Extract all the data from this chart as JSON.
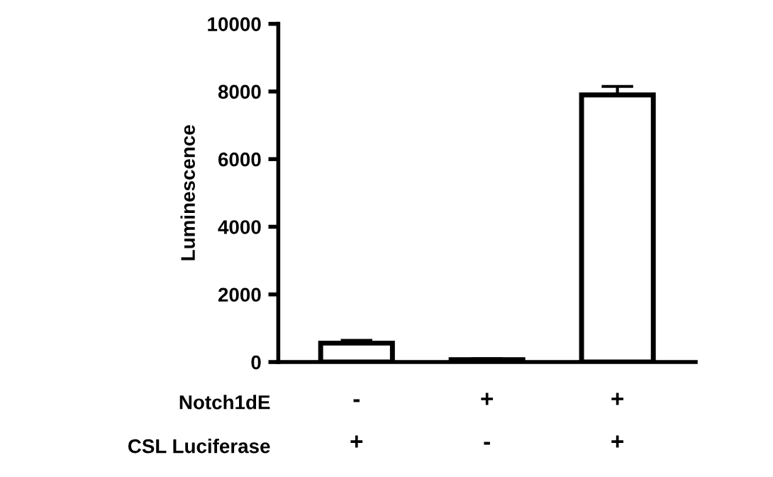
{
  "chart_data": {
    "type": "bar",
    "ylabel": "Luminescence",
    "categories": [
      "-\n+",
      "+\n-",
      "+\n+"
    ],
    "values": [
      560,
      70,
      7900
    ],
    "errors": [
      [
        560,
        640
      ],
      [
        70,
        95
      ],
      [
        7900,
        8150
      ]
    ],
    "colors": [
      "#ffffff",
      "#ffffff",
      "#ffffff"
    ],
    "ylim": [
      0,
      10000
    ],
    "yticks": [
      0,
      2000,
      4000,
      6000,
      8000,
      10000
    ],
    "grid": false,
    "annotations": [
      "Notch1dE",
      "CSL Luciferase"
    ]
  }
}
